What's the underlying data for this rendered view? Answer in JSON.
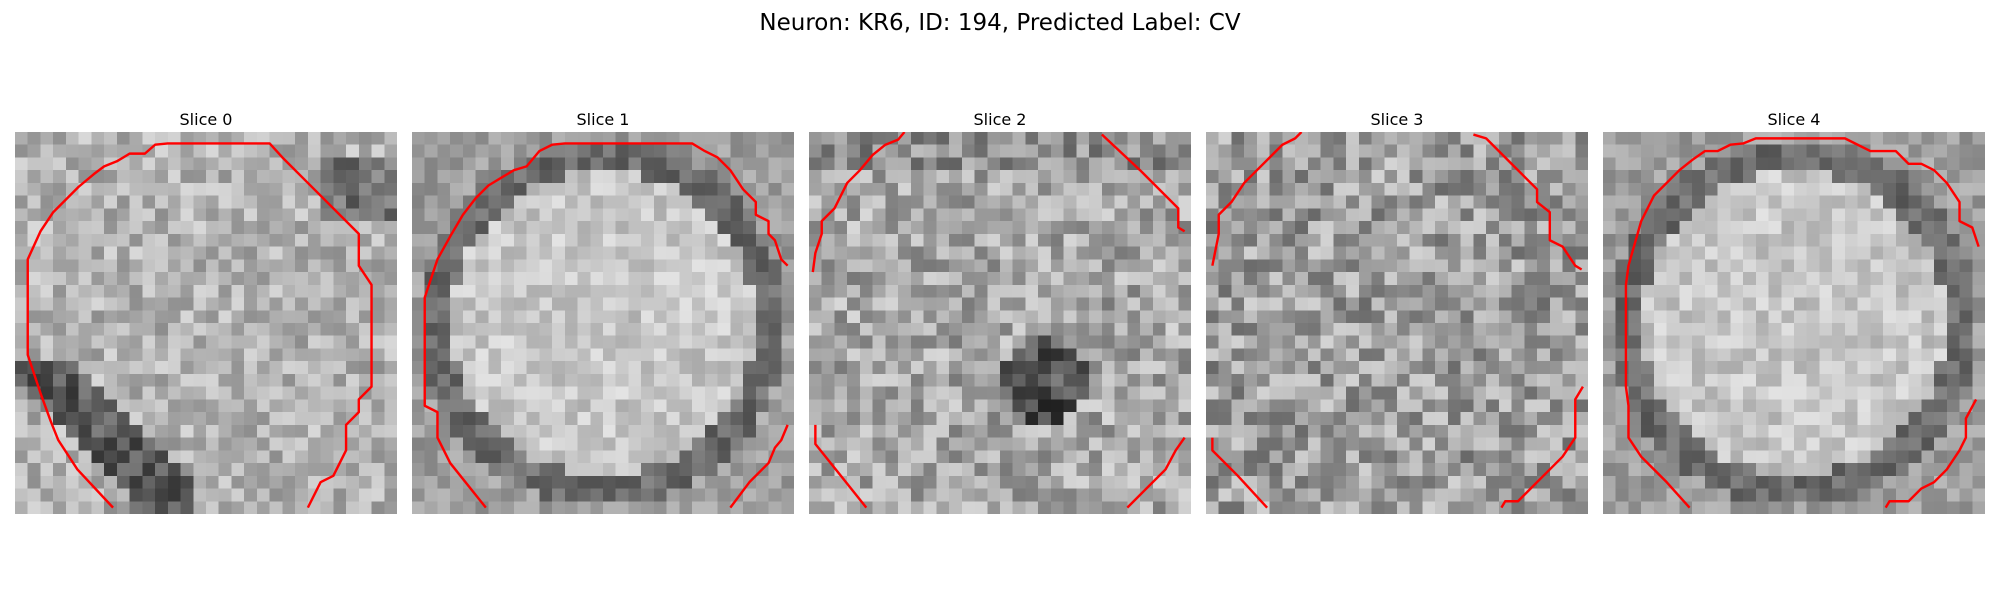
{
  "figure": {
    "title": "Neuron: KR6, ID: 194, Predicted Label: CV",
    "grid_size": 30,
    "contour_color": "#ff0000"
  },
  "panels": [
    {
      "label": "Slice 0",
      "texture": "smooth_dark_lower_left",
      "contours": [
        [
          [
            7.7,
            29.5
          ],
          [
            4.9,
            26.5
          ],
          [
            3.4,
            24.2
          ],
          [
            2.8,
            22.7
          ],
          [
            2,
            20.5
          ],
          [
            1,
            17.5
          ],
          [
            1,
            10
          ],
          [
            2,
            7.8
          ],
          [
            3,
            6.3
          ],
          [
            4,
            5.3
          ],
          [
            5,
            4.3
          ],
          [
            6.2,
            3.3
          ],
          [
            7,
            2.7
          ],
          [
            8,
            2.3
          ],
          [
            9,
            1.7
          ],
          [
            10.2,
            1.7
          ],
          [
            11,
            1
          ],
          [
            12,
            0.9
          ],
          [
            20,
            0.9
          ],
          [
            21,
            2
          ],
          [
            23,
            4
          ],
          [
            26,
            7
          ],
          [
            27,
            8
          ],
          [
            27,
            10.5
          ],
          [
            28,
            12
          ],
          [
            28,
            20
          ],
          [
            27,
            21
          ],
          [
            27,
            22
          ],
          [
            26,
            23
          ],
          [
            26,
            25
          ],
          [
            25,
            27
          ],
          [
            24,
            27.5
          ],
          [
            23,
            29.5
          ]
        ]
      ]
    },
    {
      "label": "Slice 1",
      "texture": "bright_cell_dark_rim",
      "contours": [
        [
          [
            5.8,
            29.5
          ],
          [
            3,
            26
          ],
          [
            2,
            24
          ],
          [
            2,
            22
          ],
          [
            1,
            21.5
          ],
          [
            1,
            15
          ],
          [
            1,
            13
          ],
          [
            2,
            10
          ],
          [
            3,
            8.2
          ],
          [
            4,
            6.5
          ],
          [
            5,
            5.2
          ],
          [
            6,
            4.2
          ],
          [
            7,
            3.6
          ],
          [
            8,
            3
          ],
          [
            9,
            2.7
          ],
          [
            10,
            1.5
          ],
          [
            11,
            1
          ],
          [
            12,
            0.9
          ],
          [
            22,
            0.9
          ],
          [
            23,
            1.5
          ],
          [
            24,
            2
          ],
          [
            25,
            3
          ],
          [
            26,
            4.5
          ],
          [
            27,
            5.5
          ],
          [
            27,
            6.5
          ],
          [
            28,
            7
          ],
          [
            28,
            8
          ],
          [
            28.5,
            8.5
          ],
          [
            29,
            10
          ],
          [
            29.5,
            10.5
          ]
        ],
        [
          [
            25,
            29.5
          ],
          [
            26.5,
            27.5
          ],
          [
            28,
            26
          ],
          [
            28.5,
            24.8
          ],
          [
            29,
            24.2
          ],
          [
            29.5,
            23
          ]
        ]
      ]
    },
    {
      "label": "Slice 2",
      "texture": "noisy_dark_center",
      "contours": [
        [
          [
            0.3,
            11
          ],
          [
            0.5,
            9.5
          ],
          [
            1,
            8
          ],
          [
            1,
            7
          ],
          [
            2,
            6
          ],
          [
            3,
            4
          ],
          [
            4,
            3
          ],
          [
            5,
            1.8
          ],
          [
            6,
            1
          ],
          [
            7,
            0.6
          ],
          [
            7.5,
            0
          ]
        ],
        [
          [
            23,
            0.2
          ],
          [
            26,
            3
          ],
          [
            29,
            6
          ],
          [
            29,
            7.5
          ],
          [
            29.5,
            7.8
          ]
        ],
        [
          [
            4.5,
            29.5
          ],
          [
            2.5,
            27
          ],
          [
            0.5,
            24.5
          ],
          [
            0.5,
            23
          ]
        ],
        [
          [
            25,
            29.5
          ],
          [
            26,
            28.5
          ],
          [
            27,
            27.5
          ],
          [
            28,
            26.5
          ],
          [
            28.8,
            25
          ],
          [
            29.5,
            24
          ]
        ]
      ]
    },
    {
      "label": "Slice 3",
      "texture": "noisy_uniform",
      "contours": [
        [
          [
            0.5,
            10.5
          ],
          [
            1,
            8
          ],
          [
            1,
            6.5
          ],
          [
            2,
            5.5
          ],
          [
            3,
            4
          ],
          [
            4,
            3
          ],
          [
            5,
            2
          ],
          [
            6,
            1
          ],
          [
            7,
            0.5
          ],
          [
            7.5,
            0
          ]
        ],
        [
          [
            21,
            0.2
          ],
          [
            22,
            0.5
          ],
          [
            23,
            1.5
          ],
          [
            24,
            2.5
          ],
          [
            25,
            3.5
          ],
          [
            26,
            4.5
          ],
          [
            26,
            5.5
          ],
          [
            27,
            6.3
          ],
          [
            27,
            8.5
          ],
          [
            28,
            9
          ],
          [
            29,
            10.5
          ],
          [
            29.5,
            10.8
          ]
        ],
        [
          [
            4.8,
            29.5
          ],
          [
            2.5,
            27
          ],
          [
            0.5,
            25
          ],
          [
            0.5,
            24
          ]
        ],
        [
          [
            23.2,
            29.5
          ],
          [
            23.5,
            29
          ],
          [
            24.5,
            29
          ],
          [
            25,
            28.5
          ],
          [
            26,
            27.5
          ],
          [
            27,
            26.5
          ],
          [
            28,
            25.5
          ],
          [
            29,
            24
          ],
          [
            29,
            21
          ],
          [
            29.6,
            20
          ]
        ]
      ]
    },
    {
      "label": "Slice 4",
      "texture": "bright_cell_dark_rim",
      "contours": [
        [
          [
            6.8,
            29.5
          ],
          [
            5,
            27.5
          ],
          [
            3,
            25.5
          ],
          [
            2,
            24
          ],
          [
            2,
            21.5
          ],
          [
            1.8,
            20
          ],
          [
            1.8,
            12
          ],
          [
            2,
            10.5
          ],
          [
            3,
            7
          ],
          [
            4,
            5
          ],
          [
            5,
            4
          ],
          [
            6,
            3
          ],
          [
            7,
            2.2
          ],
          [
            8,
            1.5
          ],
          [
            9,
            1.5
          ],
          [
            10,
            1
          ],
          [
            11,
            0.9
          ],
          [
            12,
            0.5
          ],
          [
            19,
            0.5
          ],
          [
            20,
            1
          ],
          [
            21,
            1.5
          ],
          [
            23,
            1.5
          ],
          [
            24,
            2.5
          ],
          [
            25,
            2.5
          ],
          [
            26,
            3
          ],
          [
            27,
            4
          ],
          [
            28,
            5.5
          ],
          [
            28,
            7
          ],
          [
            29,
            7.5
          ],
          [
            29.5,
            9
          ]
        ],
        [
          [
            22.2,
            29.5
          ],
          [
            22.5,
            29
          ],
          [
            24,
            29
          ],
          [
            25,
            28
          ],
          [
            26,
            27.5
          ],
          [
            27,
            26.5
          ],
          [
            28,
            25
          ],
          [
            28.5,
            24
          ],
          [
            28.5,
            22.5
          ],
          [
            29.3,
            21
          ]
        ]
      ]
    }
  ]
}
